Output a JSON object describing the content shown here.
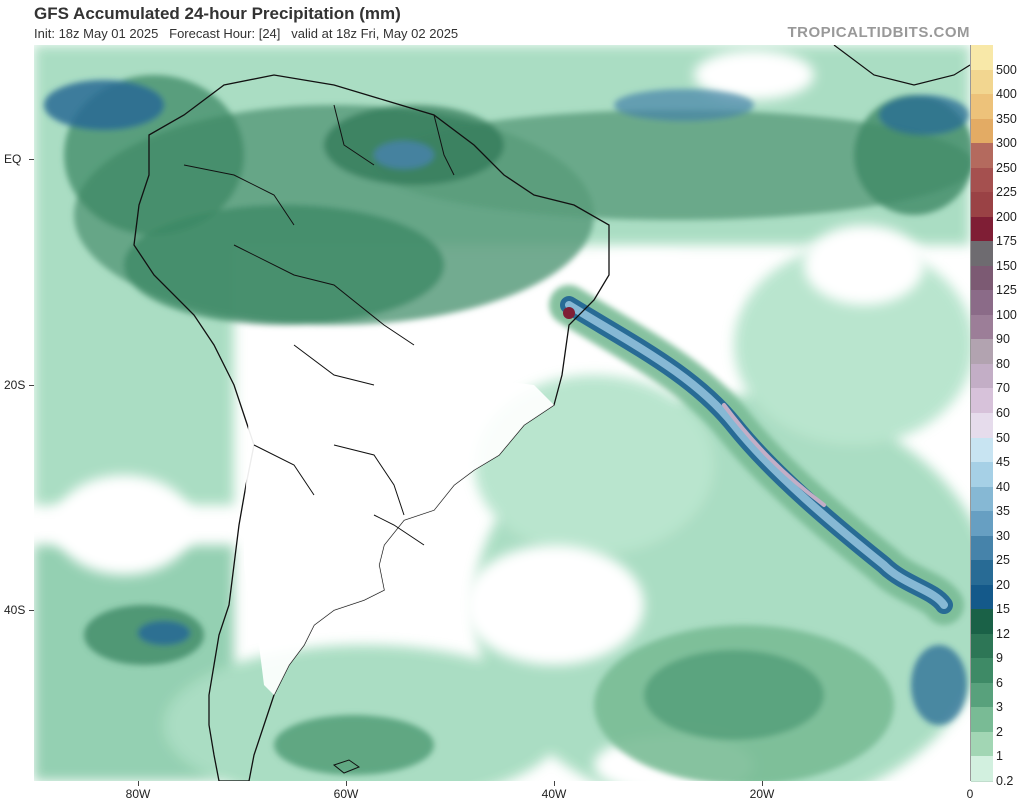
{
  "header": {
    "title": "GFS Accumulated 24-hour Precipitation (mm)",
    "subtitle": "Init: 18z May 01 2025   Forecast Hour: [24]   valid at 18z Fri, May 02 2025",
    "brand": "TROPICALTIDBITS.COM"
  },
  "lat_labels": [
    "EQ",
    "20S",
    "40S"
  ],
  "lon_labels": [
    "80W",
    "60W",
    "40W",
    "20W",
    "0"
  ],
  "colorbar": {
    "labels": [
      "500",
      "400",
      "350",
      "300",
      "250",
      "225",
      "200",
      "175",
      "150",
      "125",
      "100",
      "90",
      "80",
      "70",
      "60",
      "50",
      "45",
      "40",
      "35",
      "30",
      "25",
      "20",
      "15",
      "12",
      "9",
      "6",
      "3",
      "2",
      "1",
      "0.2"
    ],
    "colors": [
      "#f8e8a8",
      "#f2d690",
      "#edc27a",
      "#e3ab64",
      "#b46a5e",
      "#a5504f",
      "#9a4245",
      "#7f1e35",
      "#6e6b70",
      "#7c5a73",
      "#8b6b88",
      "#9c7e98",
      "#b2a3b0",
      "#c3aec6",
      "#d7c2da",
      "#e6dcec",
      "#c8e4f2",
      "#a6d0e6",
      "#86b8d4",
      "#679fc2",
      "#4683aa",
      "#286b95",
      "#14598a",
      "#1a6147",
      "#2d7656",
      "#3e8a66",
      "#58a17c",
      "#79bb95",
      "#a2d6b4",
      "#d2f0df"
    ]
  },
  "colors": {
    "land_outline": "#111111",
    "ocean_light": "#9fdcbd",
    "rain_mid": "#5a9c7c",
    "rain_dark": "#2d7656",
    "rain_blue": "#286b95",
    "rain_purple": "#9c7e98"
  }
}
